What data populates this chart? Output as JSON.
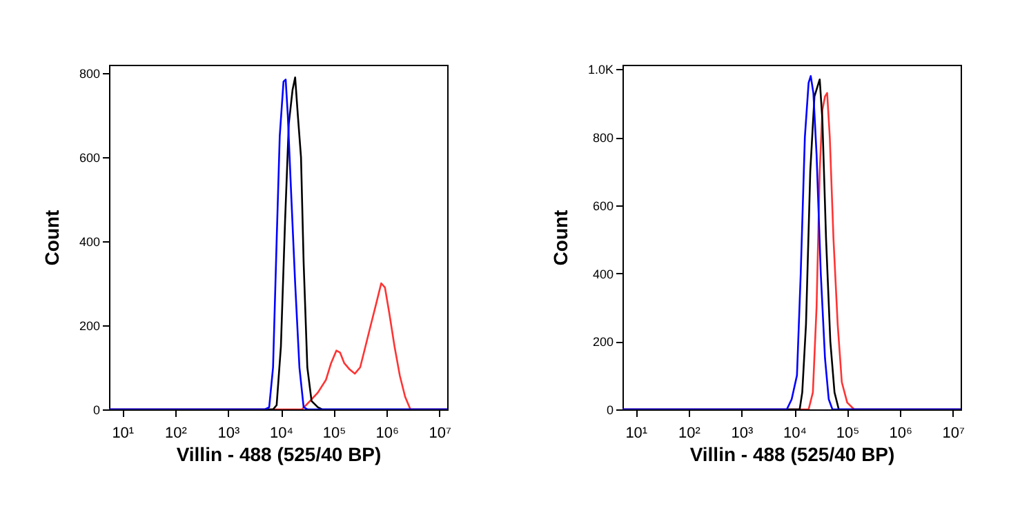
{
  "chart_data": [
    {
      "type": "line",
      "xlabel": "Villin - 488  (525/40 BP)",
      "ylabel": "Count",
      "log": "x",
      "grid": false,
      "legend": false,
      "marker": "none",
      "line_style": "solid",
      "xlim": [
        5.6,
        14000000.0
      ],
      "xticks": [
        {
          "value": 10,
          "label": "10¹"
        },
        {
          "value": 100,
          "label": "10²"
        },
        {
          "value": 1000,
          "label": "10³"
        },
        {
          "value": 10000,
          "label": "10⁴"
        },
        {
          "value": 100000,
          "label": "10⁵"
        },
        {
          "value": 1000000,
          "label": "10⁶"
        },
        {
          "value": 10000000,
          "label": "10⁷"
        }
      ],
      "ylim": [
        0,
        820
      ],
      "yticks": [
        0,
        200,
        400,
        600,
        800
      ],
      "series": [
        {
          "color": "#ff3333",
          "x": [
            5.6,
            25100.0,
            35500.0,
            50000.0,
            71000.0,
            89000.0,
            112000.0,
            132000.0,
            158000.0,
            200000.0,
            251000.0,
            316000.0,
            398000.0,
            500000.0,
            630000.0,
            790000.0,
            930000.0,
            1120000.0,
            1410000.0,
            1780000.0,
            2240000.0,
            2820000.0,
            14000000.0
          ],
          "values": [
            0,
            0,
            20,
            40,
            70,
            110,
            140,
            135,
            110,
            95,
            85,
            100,
            150,
            200,
            250,
            300,
            290,
            230,
            150,
            80,
            30,
            0,
            0
          ]
        },
        {
          "color": "#000000",
          "x": [
            5.6,
            7100.0,
            8300.0,
            10000.0,
            12000.0,
            14100.0,
            16600.0,
            18600.0,
            20900.0,
            24000.0,
            26900.0,
            31600.0,
            38000.0,
            50000.0,
            60000.0,
            14000000.0
          ],
          "values": [
            0,
            0,
            10,
            150,
            450,
            680,
            760,
            790,
            700,
            600,
            350,
            100,
            20,
            5,
            0,
            0
          ]
        },
        {
          "color": "#0000ff",
          "x": [
            5.6,
            5000.0,
            6000.0,
            7100.0,
            8300.0,
            9500.0,
            11200.0,
            12300.0,
            13500.0,
            15800.0,
            18600.0,
            22400.0,
            26900.0,
            31600.0,
            14000000.0
          ],
          "values": [
            0,
            0,
            5,
            100,
            400,
            650,
            780,
            785,
            700,
            500,
            300,
            100,
            5,
            0,
            0
          ]
        }
      ]
    },
    {
      "type": "line",
      "xlabel": "Villin - 488  (525/40 BP)",
      "ylabel": "Count",
      "log": "x",
      "grid": false,
      "legend": false,
      "marker": "none",
      "line_style": "solid",
      "xlim": [
        5.6,
        14000000.0
      ],
      "xticks": [
        {
          "value": 10,
          "label": "10¹"
        },
        {
          "value": 100,
          "label": "10²"
        },
        {
          "value": 1000,
          "label": "10³"
        },
        {
          "value": 10000,
          "label": "10⁴"
        },
        {
          "value": 100000,
          "label": "10⁵"
        },
        {
          "value": 1000000,
          "label": "10⁶"
        },
        {
          "value": 10000000,
          "label": "10⁷"
        }
      ],
      "ylim": [
        0,
        1013
      ],
      "yticks": [
        0,
        200,
        400,
        600,
        800,
        {
          "value": 1000,
          "label": "1.0K"
        }
      ],
      "series": [
        {
          "color": "#ff3333",
          "x": [
            5.6,
            18600.0,
            22400.0,
            26300.0,
            30200.0,
            33900.0,
            38000.0,
            41700.0,
            46800.0,
            55000.0,
            66000.0,
            79000.0,
            100000.0,
            135000.0,
            14000000.0
          ],
          "values": [
            0,
            0,
            50,
            300,
            700,
            880,
            920,
            930,
            800,
            500,
            250,
            80,
            20,
            0,
            0
          ]
        },
        {
          "color": "#000000",
          "x": [
            5.6,
            12600.0,
            14100.0,
            16600.0,
            20000.0,
            24000.0,
            27500.0,
            30200.0,
            33900.0,
            39800.0,
            47900.0,
            57500.0,
            69200.0,
            14000000.0
          ],
          "values": [
            0,
            0,
            50,
            250,
            700,
            920,
            950,
            970,
            850,
            500,
            200,
            50,
            0,
            0
          ]
        },
        {
          "color": "#0000ff",
          "x": [
            5.6,
            7200.0,
            8900.0,
            11200.0,
            13200.0,
            15800.0,
            18600.0,
            20400.0,
            22900.0,
            26300.0,
            31600.0,
            38000.0,
            44700.0,
            52500.0,
            14000000.0
          ],
          "values": [
            0,
            0,
            30,
            100,
            400,
            800,
            960,
            980,
            930,
            750,
            400,
            150,
            30,
            0,
            0
          ]
        }
      ]
    }
  ]
}
